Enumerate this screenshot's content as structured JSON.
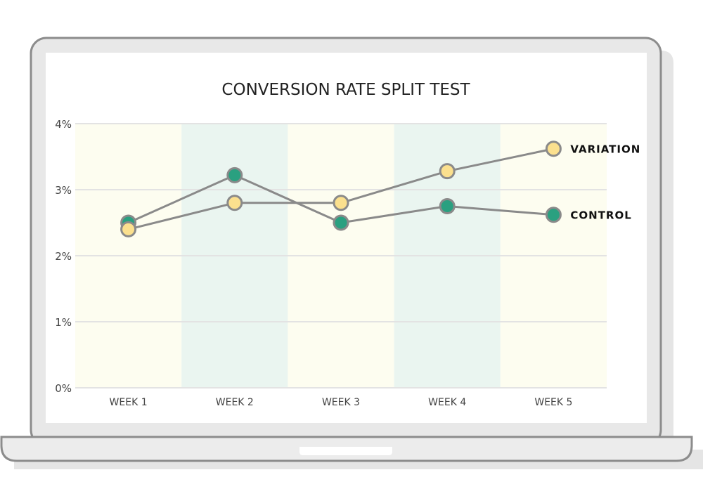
{
  "chart_data": {
    "type": "line",
    "title": "CONVERSION RATE SPLIT TEST",
    "categories": [
      "WEEK 1",
      "WEEK 2",
      "WEEK 3",
      "WEEK 4",
      "WEEK 5"
    ],
    "y_ticks": [
      "0%",
      "1%",
      "2%",
      "3%",
      "4%"
    ],
    "ylim": [
      0,
      4
    ],
    "grid": true,
    "legend": "inline-right",
    "series": [
      {
        "name": "VARIATION",
        "values": [
          2.4,
          2.8,
          2.8,
          3.28,
          3.62
        ],
        "color": "#fbe08e"
      },
      {
        "name": "CONTROL",
        "values": [
          2.5,
          3.22,
          2.5,
          2.75,
          2.62
        ],
        "color": "#2aa080"
      }
    ],
    "band_colors": [
      "#fdfdf0",
      "#eaf5f0"
    ],
    "line_color": "#8a8a8a"
  }
}
